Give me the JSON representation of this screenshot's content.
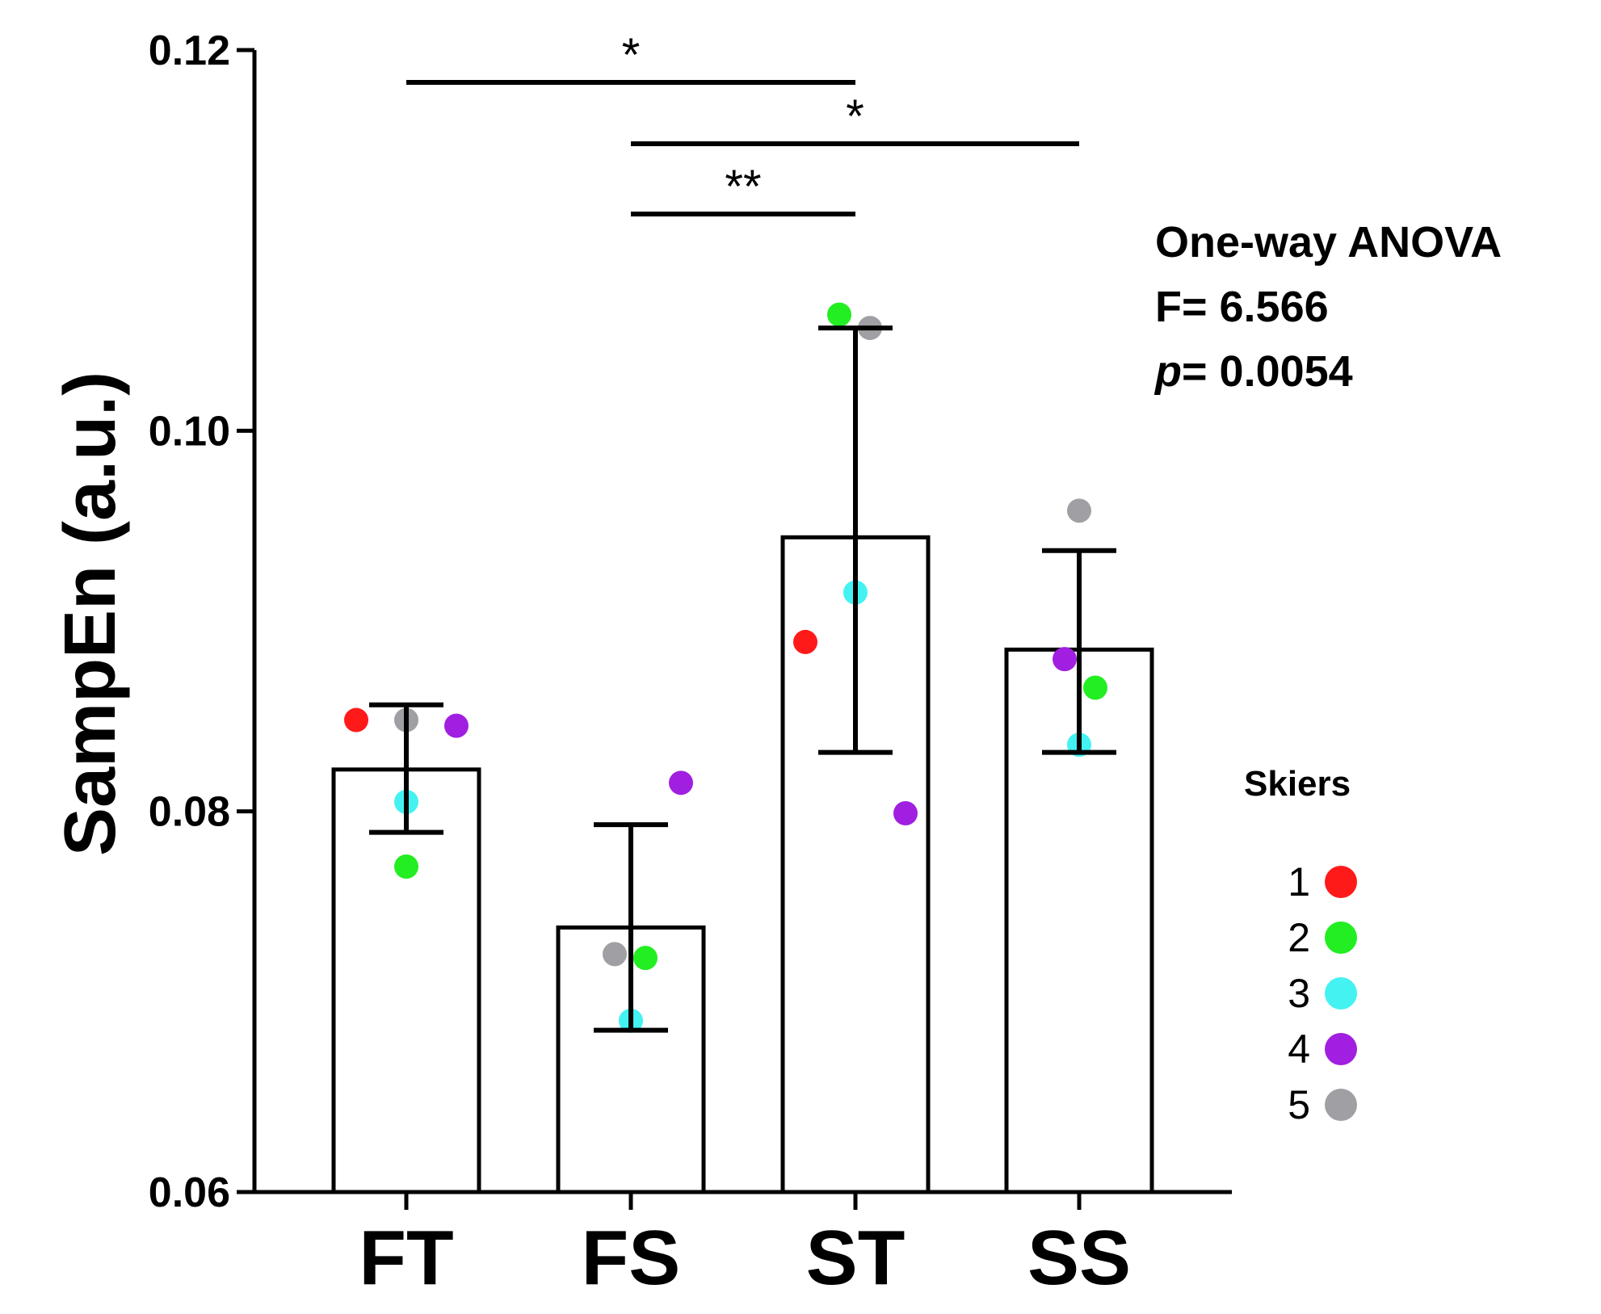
{
  "chart_data": {
    "type": "bar",
    "title": "",
    "xlabel": "",
    "ylabel": "SampEn (a.u.)",
    "ylim": [
      0.06,
      0.12
    ],
    "yticks": [
      0.06,
      0.08,
      0.1,
      0.12
    ],
    "ytick_labels": [
      "0.06",
      "0.08",
      "0.10",
      "0.12"
    ],
    "categories": [
      "FT",
      "FS",
      "ST",
      "SS"
    ],
    "values": [
      0.0822,
      0.0739,
      0.0944,
      0.0885
    ],
    "error": {
      "lower": [
        0.0789,
        0.0685,
        0.0831,
        0.0831
      ],
      "upper": [
        0.0856,
        0.0793,
        0.1054,
        0.0937
      ]
    },
    "points": [
      {
        "skier": 1,
        "x": "FT",
        "y": 0.0848
      },
      {
        "skier": 2,
        "x": "FT",
        "y": 0.0771
      },
      {
        "skier": 3,
        "x": "FT",
        "y": 0.0805
      },
      {
        "skier": 4,
        "x": "FT",
        "y": 0.0845
      },
      {
        "skier": 5,
        "x": "FT",
        "y": 0.0848
      },
      {
        "skier": 2,
        "x": "FS",
        "y": 0.0723
      },
      {
        "skier": 3,
        "x": "FS",
        "y": 0.069
      },
      {
        "skier": 4,
        "x": "FS",
        "y": 0.0815
      },
      {
        "skier": 5,
        "x": "FS",
        "y": 0.0725
      },
      {
        "skier": 1,
        "x": "ST",
        "y": 0.0889
      },
      {
        "skier": 2,
        "x": "ST",
        "y": 0.1061
      },
      {
        "skier": 3,
        "x": "ST",
        "y": 0.0915
      },
      {
        "skier": 4,
        "x": "ST",
        "y": 0.0799
      },
      {
        "skier": 5,
        "x": "ST",
        "y": 0.1054
      },
      {
        "skier": 2,
        "x": "SS",
        "y": 0.0865
      },
      {
        "skier": 3,
        "x": "SS",
        "y": 0.0835
      },
      {
        "skier": 4,
        "x": "SS",
        "y": 0.088
      },
      {
        "skier": 5,
        "x": "SS",
        "y": 0.0958
      }
    ],
    "significance": [
      {
        "from": "FT",
        "to": "ST",
        "label": "*"
      },
      {
        "from": "FS",
        "to": "SS",
        "label": "*"
      },
      {
        "from": "FS",
        "to": "ST",
        "label": "**"
      }
    ],
    "annotation": {
      "line1": "One-way ANOVA",
      "line2": "F= 6.566",
      "p_symbol": "p",
      "p_value": "= 0.0054"
    },
    "legend": {
      "title": "Skiers",
      "placement": "right",
      "items": [
        {
          "label": "1",
          "color": "#ff1a1a"
        },
        {
          "label": "2",
          "color": "#22ee22"
        },
        {
          "label": "3",
          "color": "#44f2f2"
        },
        {
          "label": "4",
          "color": "#a11fe0"
        },
        {
          "label": "5",
          "color": "#a0a0a4"
        }
      ]
    }
  }
}
